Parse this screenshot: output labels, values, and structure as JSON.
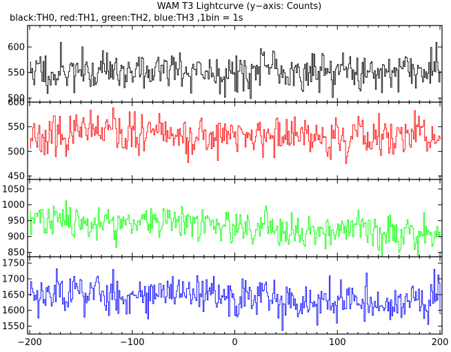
{
  "chart_data": {
    "type": "line",
    "title": "WAM T3 Lightcurve (y−axis: Counts)",
    "subtitle": "black:TH0, red:TH1, green:TH2, blue:TH3 ,1bin = 1s",
    "x": {
      "range": [
        -202,
        202
      ],
      "ticks": [
        -200,
        -100,
        0,
        100,
        200
      ],
      "tick_labels": [
        "−200",
        "−100",
        "0",
        "100",
        "200"
      ]
    },
    "grid": false,
    "legend": "none",
    "panels": [
      {
        "name": "TH0",
        "color": "#000000",
        "ylim": [
          492,
          642
        ],
        "yticks": [
          500,
          550,
          600
        ],
        "ytick_labels": [
          "500",
          "550",
          "600"
        ],
        "baseline": 553,
        "noise": 22,
        "trend": 0,
        "seed": 11
      },
      {
        "name": "TH1",
        "color": "#ff0000",
        "ylim": [
          443,
          600
        ],
        "yticks": [
          450,
          500,
          550,
          600
        ],
        "ytick_labels": [
          "450",
          "500",
          "550",
          "600"
        ],
        "baseline": 535,
        "noise": 22,
        "trend": -8,
        "seed": 23
      },
      {
        "name": "TH2",
        "color": "#00ff00",
        "ylim": [
          836,
          1080
        ],
        "yticks": [
          850,
          900,
          950,
          1000,
          1050
        ],
        "ytick_labels": [
          "850",
          "900",
          "950",
          "1000",
          "1050"
        ],
        "baseline": 955,
        "noise": 30,
        "trend": -45,
        "seed": 37
      },
      {
        "name": "TH3",
        "color": "#0000ff",
        "ylim": [
          1525,
          1770
        ],
        "yticks": [
          1550,
          1600,
          1650,
          1700,
          1750
        ],
        "ytick_labels": [
          "1550",
          "1600",
          "1650",
          "1700",
          "1750"
        ],
        "baseline": 1662,
        "noise": 38,
        "trend": -40,
        "seed": 53
      }
    ]
  }
}
